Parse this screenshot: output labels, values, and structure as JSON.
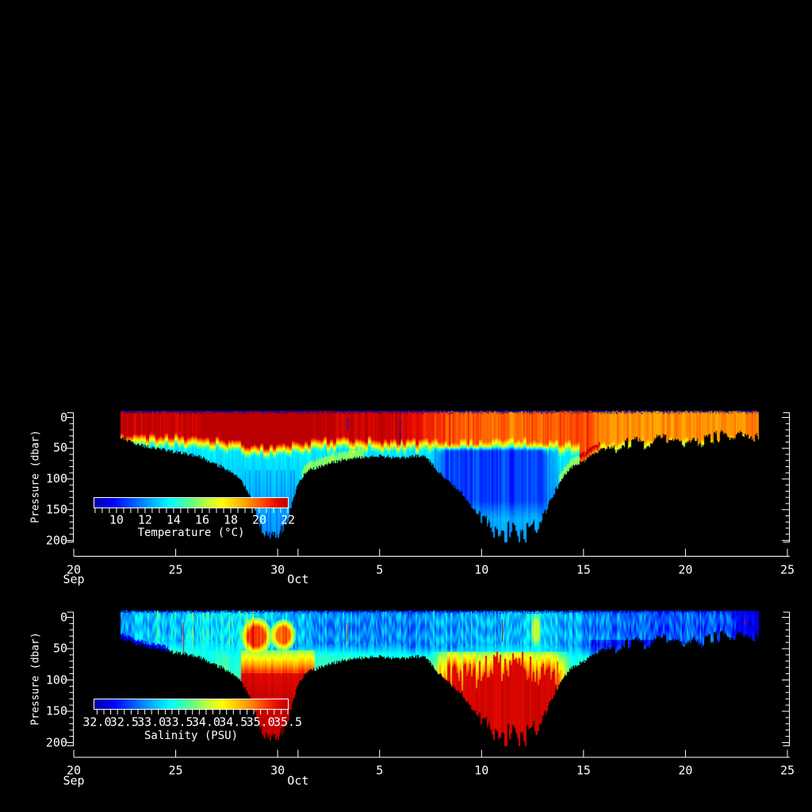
{
  "figure": {
    "background_color": "#000000",
    "axis_color": "#ffffff",
    "colormap_stops": [
      [
        0.0,
        [
          0,
          0,
          168
        ]
      ],
      [
        0.1,
        [
          0,
          0,
          255
        ]
      ],
      [
        0.3,
        [
          0,
          178,
          255
        ]
      ],
      [
        0.39,
        [
          0,
          255,
          255
        ]
      ],
      [
        0.5,
        [
          96,
          255,
          128
        ]
      ],
      [
        0.58,
        [
          190,
          255,
          60
        ]
      ],
      [
        0.66,
        [
          255,
          255,
          0
        ]
      ],
      [
        0.78,
        [
          255,
          162,
          0
        ]
      ],
      [
        0.87,
        [
          255,
          70,
          0
        ]
      ],
      [
        0.94,
        [
          232,
          10,
          0
        ]
      ],
      [
        1.0,
        [
          186,
          0,
          0
        ]
      ]
    ],
    "panels": [
      {
        "id": "temperature-section",
        "ylabel": "Pressure (dbar)",
        "y_ticks": [
          "0",
          "50",
          "100",
          "150",
          "200"
        ],
        "y_range_dbar": [
          0,
          200
        ],
        "x_ticks": [
          {
            "label": "20",
            "month": "Sep",
            "day_offset": 0
          },
          {
            "label": "25",
            "day_offset": 5
          },
          {
            "label": "30",
            "day_offset": 10
          },
          {
            "label": "",
            "month": "Oct",
            "day_offset": 11
          },
          {
            "label": "5",
            "day_offset": 15
          },
          {
            "label": "10",
            "day_offset": 20
          },
          {
            "label": "15",
            "day_offset": 25
          },
          {
            "label": "20",
            "day_offset": 30
          },
          {
            "label": "25",
            "day_offset": 35
          }
        ],
        "colorbar": {
          "title": "Temperature (°C)",
          "tick_labels": [
            "10",
            "12",
            "14",
            "16",
            "18",
            "20",
            "22"
          ],
          "tick_values": [
            10,
            12,
            14,
            16,
            18,
            20,
            22
          ],
          "range": [
            8.45,
            22
          ],
          "minor_step": 0.5
        }
      },
      {
        "id": "salinity-section",
        "ylabel": "Pressure (dbar)",
        "y_ticks": [
          "0",
          "50",
          "100",
          "150",
          "200"
        ],
        "y_range_dbar": [
          0,
          200
        ],
        "x_ticks": [
          {
            "label": "20",
            "month": "Sep",
            "day_offset": 0
          },
          {
            "label": "25",
            "day_offset": 5
          },
          {
            "label": "30",
            "day_offset": 10
          },
          {
            "label": "",
            "month": "Oct",
            "day_offset": 11
          },
          {
            "label": "5",
            "day_offset": 15
          },
          {
            "label": "10",
            "day_offset": 20
          },
          {
            "label": "15",
            "day_offset": 25
          },
          {
            "label": "20",
            "day_offset": 30
          },
          {
            "label": "25",
            "day_offset": 35
          }
        ],
        "colorbar": {
          "title": "Salinity (PSU)",
          "tick_labels": [
            "32.0",
            "32.5",
            "33.0",
            "33.5",
            "34.0",
            "34.5",
            "35.0",
            "35.5"
          ],
          "tick_values": [
            32.0,
            32.5,
            33.0,
            33.5,
            34.0,
            34.5,
            35.0,
            35.5
          ],
          "range": [
            31.95,
            35.5
          ],
          "minor_step": 0.125
        }
      }
    ]
  },
  "envelope_profile": {
    "description": "maximum sampled pressure (dbar) vs time (days after Sep 20)",
    "days_after_sep20": [
      2.3,
      2.6,
      3,
      3.5,
      4,
      4.5,
      5,
      5.5,
      6,
      6.3,
      6.6,
      7,
      7.5,
      8,
      8.4,
      8.7,
      9,
      9.2,
      9.5,
      10,
      10.4,
      10.6,
      10.8,
      11,
      11.3,
      11.6,
      12,
      12.5,
      13,
      13.5,
      14,
      14.5,
      15,
      15.5,
      16,
      16.5,
      17,
      17.3,
      17.6,
      18,
      18.5,
      19,
      19.3,
      19.6,
      20,
      20.3,
      20.6,
      21,
      21.3,
      21.6,
      22,
      22.3,
      22.6,
      23,
      23.3,
      23.6,
      24,
      24.3,
      24.6,
      25,
      25.5,
      26,
      26.5,
      27,
      27.5,
      28,
      28.5,
      29,
      29.5,
      30,
      30.5,
      31,
      31.5,
      32,
      32.5,
      33,
      33.3,
      33.5
    ],
    "max_pressure_dbar": [
      33,
      36,
      42,
      46,
      50,
      53,
      56,
      58,
      62,
      64,
      72,
      76,
      84,
      95,
      112,
      132,
      162,
      185,
      190,
      191,
      172,
      150,
      128,
      105,
      92,
      84,
      80,
      74,
      70,
      66,
      64,
      63,
      62,
      64,
      66,
      63,
      62,
      64,
      78,
      92,
      108,
      122,
      135,
      150,
      163,
      172,
      182,
      190,
      194,
      195,
      193,
      188,
      178,
      162,
      140,
      118,
      96,
      84,
      76,
      70,
      58,
      50,
      47,
      44,
      40,
      42,
      38,
      36,
      34,
      40,
      42,
      34,
      29,
      30,
      27,
      26,
      28,
      30
    ]
  },
  "chart_data": [
    {
      "type": "heatmap",
      "variable": "temperature",
      "units": "°C",
      "x_axis": "date, Sep 20 - Oct 25",
      "y_axis": "Pressure (dbar), 0-200",
      "colormap": "rainbow blue-to-red",
      "value_range": [
        8.45,
        22
      ],
      "data_time_span_days": [
        2.3,
        33.5
      ],
      "time_days_after_sep20": [
        2.3,
        6,
        7,
        8,
        9,
        10,
        11,
        12,
        14,
        15,
        16.5,
        17.5,
        18.5,
        20,
        21,
        22,
        23,
        24,
        25,
        26,
        28,
        30,
        32,
        33.5
      ],
      "sea_surface_temp_c": [
        21.8,
        21.8,
        22.2,
        22.6,
        22.8,
        22.6,
        22.2,
        22.0,
        21.7,
        21.7,
        21.6,
        20.6,
        20.0,
        19.9,
        19.7,
        19.6,
        19.9,
        20.1,
        20.0,
        19.4,
        19.2,
        19.3,
        19.2,
        19.5
      ],
      "warm_layer_depth_dbar": [
        26,
        30,
        32,
        38,
        44,
        46,
        38,
        34,
        34,
        34,
        36,
        38,
        38,
        36,
        34,
        34,
        38,
        40,
        40,
        38,
        36,
        34,
        32,
        30
      ],
      "thermocline_thickness_dbar": 20,
      "sub_thermocline_temp_c": 13.4,
      "deep_lapse_c_per_dbar": 0.009,
      "cold_intermediate_layer": {
        "days": [
          17.4,
          23.8
        ],
        "pressure_dbar": [
          46,
          165
        ],
        "core_temp_c": 10.7
      },
      "spikes": [
        {
          "day": 16.0,
          "pressure_dbar": [
            2,
            45
          ],
          "value": 9.0
        },
        {
          "day": 13.4,
          "pressure_dbar": [
            0,
            20
          ],
          "value": 9.2
        }
      ],
      "surface_artifact_value": 8.6
    },
    {
      "type": "heatmap",
      "variable": "salinity",
      "units": "PSU",
      "x_axis": "date, Sep 20 - Oct 25",
      "y_axis": "Pressure (dbar), 0-200",
      "colormap": "rainbow blue-to-red",
      "value_range": [
        31.95,
        35.5
      ],
      "data_time_span_days": [
        2.3,
        33.5
      ],
      "time_days_after_sep20": [
        2.3,
        5,
        7,
        8,
        9,
        10,
        11,
        12,
        14,
        16,
        18,
        20,
        22,
        23,
        24,
        25,
        26,
        28,
        30,
        32,
        33,
        33.5
      ],
      "surface_salinity_psu": [
        33.0,
        33.1,
        33.2,
        33.3,
        33.2,
        33.1,
        33.0,
        32.9,
        32.9,
        32.8,
        33.0,
        33.0,
        33.1,
        33.2,
        33.0,
        32.9,
        32.8,
        32.7,
        32.7,
        32.6,
        32.3,
        32.2
      ],
      "halocline_base_psu": 33.45,
      "deep_lapse_psu_per_dbar": 0.004,
      "saline_deep_events": [
        {
          "days": [
            8.2,
            11.8
          ],
          "top_dbar": 52,
          "max_psu": 35.45
        },
        {
          "days": [
            17.5,
            24.3
          ],
          "top_dbar": 55,
          "max_psu": 35.45
        }
      ],
      "saline_blobs": [
        {
          "day": 8.95,
          "pressure_dbar": 30,
          "day_radius": 0.6,
          "pressure_radius_dbar": 24,
          "peak_psu": 35.1
        },
        {
          "day": 10.25,
          "pressure_dbar": 28,
          "day_radius": 0.5,
          "pressure_radius_dbar": 20,
          "peak_psu": 34.95
        },
        {
          "day": 22.65,
          "pressure_dbar": 20,
          "day_radius": 0.22,
          "pressure_radius_dbar": 26,
          "peak_psu": 33.95
        }
      ],
      "spikes": [
        {
          "day": 5.35,
          "pressure_dbar": [
            8,
            65
          ],
          "value": 35.3
        },
        {
          "day": 13.4,
          "pressure_dbar": [
            8,
            38
          ],
          "value": 35.3
        },
        {
          "day": 21.0,
          "pressure_dbar": [
            3,
            38
          ],
          "value": 35.45
        },
        {
          "day": 32.9,
          "pressure_dbar": [
            3,
            12
          ],
          "value": 35.3
        }
      ],
      "fresh_deep_patch": {
        "days": [
          25.3,
          28.7
        ],
        "below_dbar": 36,
        "delta_psu": -0.38
      },
      "fresh_end_patch": {
        "days": [
          32.55,
          33.6
        ],
        "above_dbar": 34,
        "psu": 32.15
      },
      "surface_artifact_value": 32.0
    }
  ]
}
